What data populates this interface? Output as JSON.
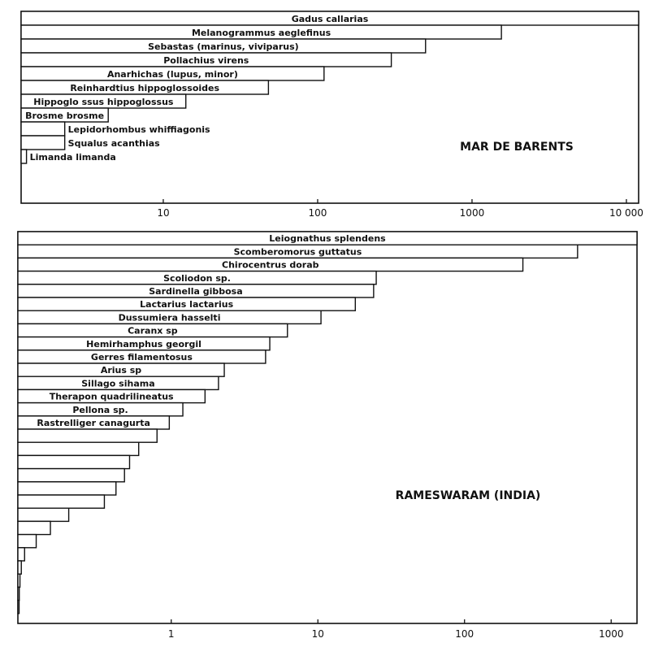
{
  "colors": {
    "ink": "#111111",
    "bar_fill": "#ffffff"
  },
  "chart_data": [
    {
      "type": "bar",
      "orientation": "horizontal",
      "scale": "log",
      "region": "MAR DE BARENTS",
      "xlim": [
        1.2,
        12000
      ],
      "tick_values": [
        10,
        100,
        1000,
        10000
      ],
      "tick_labels": [
        "10",
        "100",
        "1000",
        "10 000"
      ],
      "categories": [
        "Gadus callarias",
        "Melanogrammus aeglefinus",
        "Sebastas (marinus, viviparus)",
        "Pollachius virens",
        "Anarhichas (lupus, minor)",
        "Reinhardtius hippoglossoides",
        "Hippoglo ssus hippoglossus",
        "Brosme brosme",
        "Lepidorhombus whiffiagonis",
        "Squalus acanthias",
        "Limanda limanda"
      ],
      "values": [
        12000,
        1550,
        500,
        300,
        110,
        48,
        14,
        4.4,
        2.3,
        2.3,
        1.3
      ]
    },
    {
      "type": "bar",
      "orientation": "horizontal",
      "scale": "log",
      "region": "RAMESWARAM (INDIA)",
      "xlim": [
        0.09,
        1500
      ],
      "tick_values": [
        1,
        10,
        100,
        1000
      ],
      "tick_labels": [
        "1",
        "10",
        "100",
        "1000"
      ],
      "categories": [
        "Leiognathus splendens",
        "Scomberomorus guttatus",
        "Chirocentrus dorab",
        "Scoliodon sp.",
        "Sardinella gibbosa",
        "Lactarius lactarius",
        "Dussumiera hasselti",
        "Caranx sp",
        "Hemirhamphus georgil",
        "Gerres filamentosus",
        "Arius sp",
        "Sillago sihama",
        "Therapon quadrilineatus",
        "Pellona sp.",
        "Rastrelliger canagurta",
        "",
        "",
        "",
        "",
        "",
        "",
        "",
        "",
        "",
        "",
        "",
        "",
        "",
        ""
      ],
      "values": [
        1500,
        590,
        250,
        25,
        24,
        18,
        10.5,
        6.2,
        4.7,
        4.4,
        2.3,
        2.1,
        1.7,
        1.2,
        0.97,
        0.8,
        0.6,
        0.52,
        0.48,
        0.42,
        0.35,
        0.2,
        0.15,
        0.12,
        0.1,
        0.095,
        0.093,
        0.092,
        0.091
      ]
    }
  ]
}
